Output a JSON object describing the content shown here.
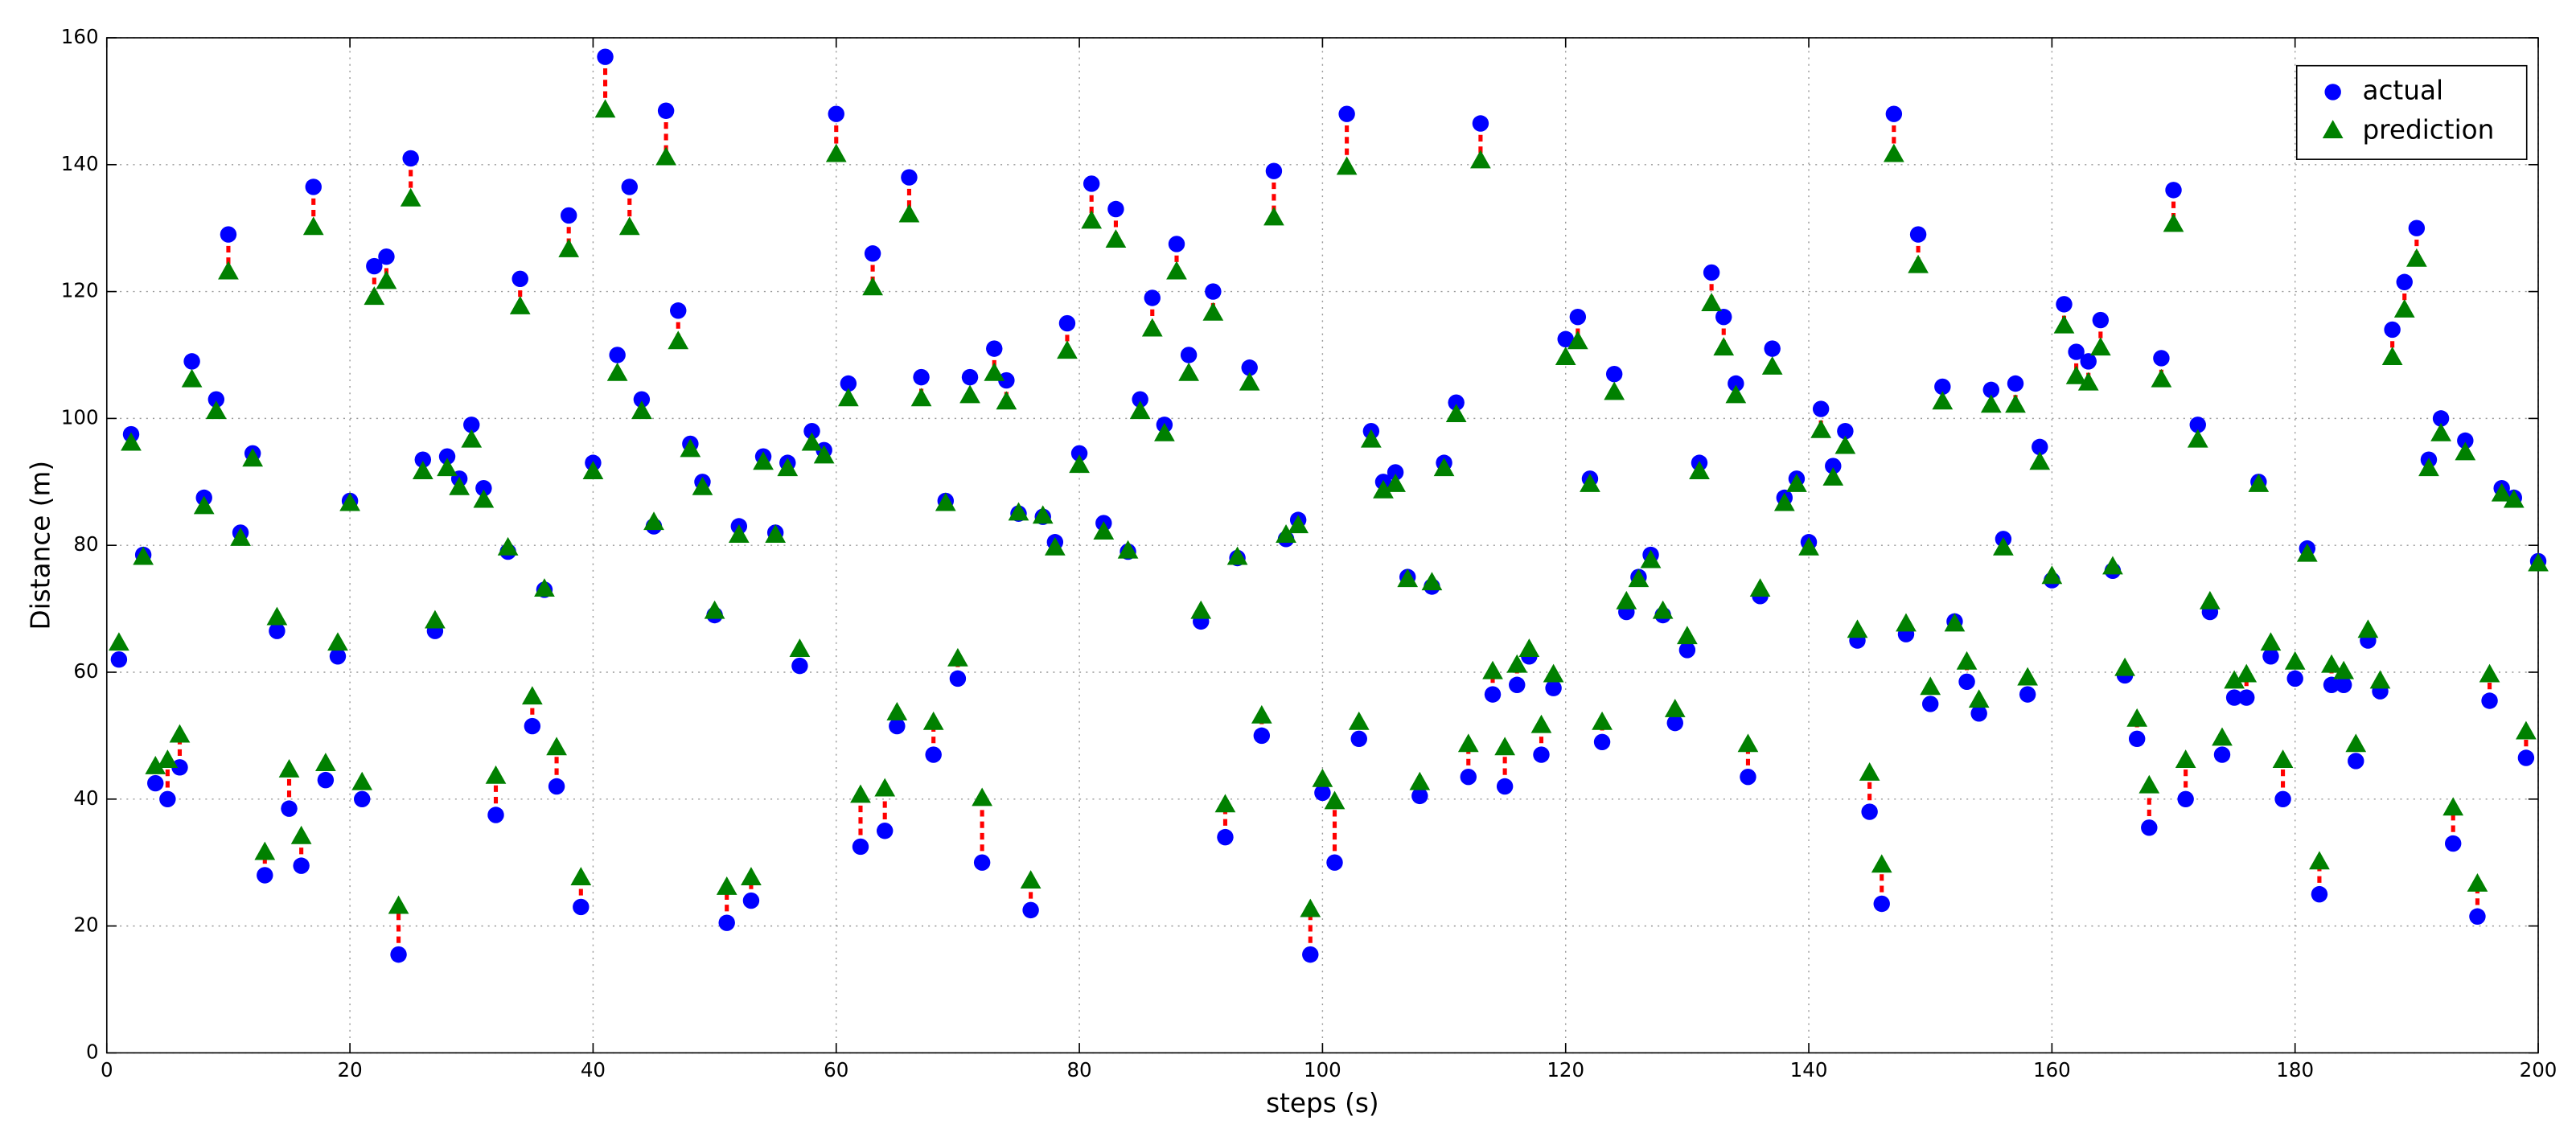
{
  "chart_data": {
    "type": "scatter",
    "xlabel": "steps (s)",
    "ylabel": "Distance (m)",
    "xlim": [
      0,
      200
    ],
    "ylim": [
      0,
      160
    ],
    "xticks": [
      0,
      20,
      40,
      60,
      80,
      100,
      120,
      140,
      160,
      180,
      200
    ],
    "yticks": [
      0,
      20,
      40,
      60,
      80,
      100,
      120,
      140,
      160
    ],
    "grid": true,
    "legend": "upper right",
    "connector_color": "#ff0000",
    "x": [
      1,
      2,
      3,
      4,
      5,
      6,
      7,
      8,
      9,
      10,
      11,
      12,
      13,
      14,
      15,
      16,
      17,
      18,
      19,
      20,
      21,
      22,
      23,
      24,
      25,
      26,
      27,
      28,
      29,
      30,
      31,
      32,
      33,
      34,
      35,
      36,
      37,
      38,
      39,
      40,
      41,
      42,
      43,
      44,
      45,
      46,
      47,
      48,
      49,
      50,
      51,
      52,
      53,
      54,
      55,
      56,
      57,
      58,
      59,
      60,
      61,
      62,
      63,
      64,
      65,
      66,
      67,
      68,
      69,
      70,
      71,
      72,
      73,
      74,
      75,
      76,
      77,
      78,
      79,
      80,
      81,
      82,
      83,
      84,
      85,
      86,
      87,
      88,
      89,
      90,
      91,
      92,
      93,
      94,
      95,
      96,
      97,
      98,
      99,
      100,
      101,
      102,
      103,
      104,
      105,
      106,
      107,
      108,
      109,
      110,
      111,
      112,
      113,
      114,
      115,
      116,
      117,
      118,
      119,
      120,
      121,
      122,
      123,
      124,
      125,
      126,
      127,
      128,
      129,
      130,
      131,
      132,
      133,
      134,
      135,
      136,
      137,
      138,
      139,
      140,
      141,
      142,
      143,
      144,
      145,
      146,
      147,
      148,
      149,
      150,
      151,
      152,
      153,
      154,
      155,
      156,
      157,
      158,
      159,
      160,
      161,
      162,
      163,
      164,
      165,
      166,
      167,
      168,
      169,
      170,
      171,
      172,
      173,
      174,
      175,
      176,
      177,
      178,
      179,
      180,
      181,
      182,
      183,
      184,
      185,
      186,
      187,
      188,
      189,
      190,
      191,
      192,
      193,
      194,
      195,
      196,
      197,
      198,
      199,
      200
    ],
    "series": [
      {
        "name": "actual",
        "color": "#0000ff",
        "marker": "circle",
        "values": [
          62,
          97.5,
          78.5,
          42.5,
          40,
          45,
          109,
          87.5,
          103,
          129,
          82,
          94.5,
          28,
          66.5,
          38.5,
          29.5,
          136.5,
          43,
          62.5,
          87,
          40,
          124,
          125.5,
          15.5,
          141,
          93.5,
          66.5,
          94,
          90.5,
          99,
          89,
          37.5,
          79,
          122,
          51.5,
          73,
          42,
          132,
          23,
          93,
          157,
          110,
          136.5,
          103,
          83,
          148.5,
          117,
          96,
          90,
          69,
          20.5,
          83,
          24,
          94,
          82,
          93,
          61,
          98,
          95,
          148,
          105.5,
          32.5,
          126,
          35,
          51.5,
          138,
          106.5,
          47,
          87,
          59,
          106.5,
          30,
          111,
          106,
          85,
          22.5,
          84.5,
          80.5,
          115,
          94.5,
          137,
          83.5,
          133,
          79,
          103,
          119,
          99,
          127.5,
          110,
          68,
          120,
          34,
          78,
          108,
          50,
          139,
          81,
          84,
          15.5,
          41,
          30,
          148,
          49.5,
          98,
          90,
          91.5,
          75,
          40.5,
          73.5,
          93,
          102.5,
          43.5,
          146.5,
          56.5,
          42,
          58,
          62.5,
          47,
          57.5,
          112.5,
          116,
          90.5,
          49,
          107,
          69.5,
          75,
          78.5,
          69,
          52,
          63.5,
          93,
          123,
          116,
          105.5,
          43.5,
          72,
          111,
          87.5,
          90.5,
          80.5,
          101.5,
          92.5,
          98,
          65,
          38,
          23.5,
          148,
          66,
          129,
          55,
          105,
          68,
          58.5,
          53.5,
          104.5,
          81,
          105.5,
          56.5,
          95.5,
          74.5,
          118,
          110.5,
          109,
          115.5,
          76,
          59.5,
          49.5,
          35.5,
          109.5,
          136,
          40,
          99,
          69.5,
          47,
          56,
          56,
          90,
          62.5,
          40,
          59,
          79.5,
          25,
          58,
          58,
          46,
          65,
          57,
          114,
          121.5,
          130,
          93.5,
          100,
          33,
          96.5,
          21.5,
          55.5,
          89,
          87.5,
          46.5,
          77.5
        ]
      },
      {
        "name": "prediction",
        "color": "#008000",
        "marker": "triangle",
        "values": [
          64.5,
          96,
          78,
          45,
          46,
          50,
          106,
          86,
          101,
          123,
          81,
          93.5,
          31.5,
          68.5,
          44.5,
          34,
          130,
          45.5,
          64.5,
          86.5,
          42.5,
          119,
          121.5,
          23,
          134.5,
          91.5,
          68,
          92,
          89,
          96.5,
          87,
          43.5,
          79.5,
          117.5,
          56,
          73,
          48,
          126.5,
          27.5,
          91.5,
          148.5,
          107,
          130,
          101,
          83.5,
          141,
          112,
          95,
          89,
          69.5,
          26,
          81.5,
          27.5,
          93,
          81.5,
          92,
          63.5,
          96,
          94,
          141.5,
          103,
          40.5,
          120.5,
          41.5,
          53.5,
          132,
          103,
          52,
          86.5,
          62,
          103.5,
          40,
          107,
          102.5,
          85,
          27,
          84.5,
          79.5,
          110.5,
          92.5,
          131,
          82,
          128,
          79,
          101,
          114,
          97.5,
          123,
          107,
          69.5,
          116.5,
          39,
          78,
          105.5,
          53,
          131.5,
          81.5,
          83,
          22.5,
          43,
          39.5,
          139.5,
          52,
          96.5,
          88.5,
          89.5,
          74.5,
          42.5,
          74,
          92,
          100.5,
          48.5,
          140.5,
          60,
          48,
          61,
          63.5,
          51.5,
          59.5,
          109.5,
          112,
          89.5,
          52,
          104,
          71,
          74.5,
          77.5,
          69.5,
          54,
          65.5,
          91.5,
          118,
          111,
          103.5,
          48.5,
          73,
          108,
          86.5,
          89.5,
          79.5,
          98,
          90.5,
          95.5,
          66.5,
          44,
          29.5,
          141.5,
          67.5,
          124,
          57.5,
          102.5,
          67.5,
          61.5,
          55.5,
          102,
          79.5,
          102,
          59,
          93,
          75,
          114.5,
          106.5,
          105.5,
          111,
          76.5,
          60.5,
          52.5,
          42,
          106,
          130.5,
          46,
          96.5,
          71,
          49.5,
          58.5,
          59.5,
          89.5,
          64.5,
          46,
          61.5,
          78.5,
          30,
          61,
          60,
          48.5,
          66.5,
          58.5,
          109.5,
          117,
          125,
          92,
          97.5,
          38.5,
          94.5,
          26.5,
          59.5,
          88,
          87,
          50.5,
          77
        ]
      }
    ]
  }
}
